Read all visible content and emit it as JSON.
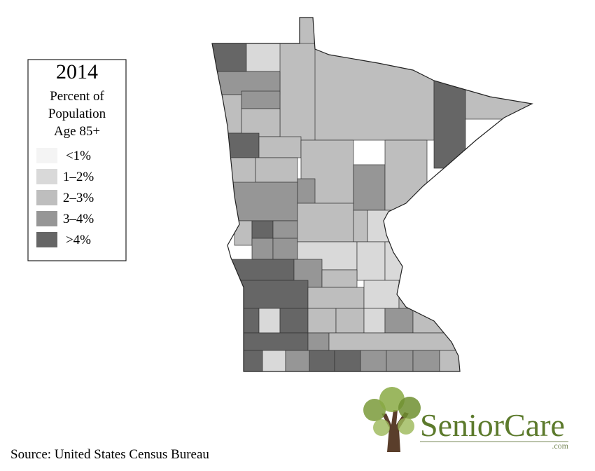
{
  "title": "2014",
  "subtitle_lines": [
    "Percent of",
    "Population",
    "Age 85+"
  ],
  "legend": {
    "items": [
      {
        "label": "<1%",
        "color": "#f4f4f4"
      },
      {
        "label": "1–2%",
        "color": "#d9d9d9"
      },
      {
        "label": "2–3%",
        "color": "#bebebe"
      },
      {
        "label": "3–4%",
        "color": "#969696"
      },
      {
        "label": ">4%",
        "color": "#666666"
      }
    ]
  },
  "source": "Source: United States Census Bureau",
  "logo": {
    "name": "SeniorCare",
    "suffix": ".com"
  }
}
